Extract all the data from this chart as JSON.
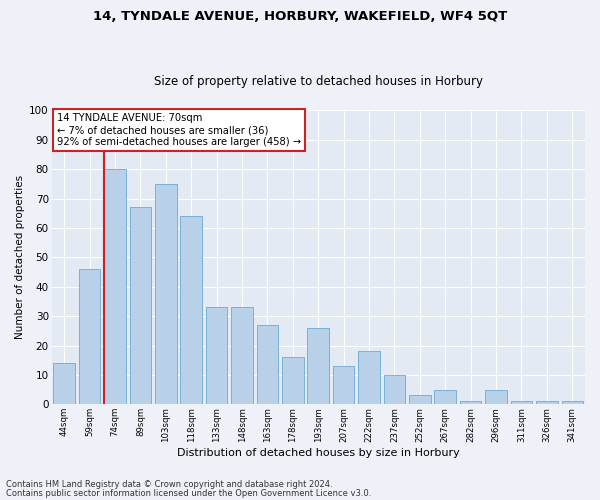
{
  "title": "14, TYNDALE AVENUE, HORBURY, WAKEFIELD, WF4 5QT",
  "subtitle": "Size of property relative to detached houses in Horbury",
  "xlabel": "Distribution of detached houses by size in Horbury",
  "ylabel": "Number of detached properties",
  "categories": [
    "44sqm",
    "59sqm",
    "74sqm",
    "89sqm",
    "103sqm",
    "118sqm",
    "133sqm",
    "148sqm",
    "163sqm",
    "178sqm",
    "193sqm",
    "207sqm",
    "222sqm",
    "237sqm",
    "252sqm",
    "267sqm",
    "282sqm",
    "296sqm",
    "311sqm",
    "326sqm",
    "341sqm"
  ],
  "values": [
    14,
    46,
    80,
    67,
    75,
    64,
    33,
    33,
    27,
    16,
    26,
    13,
    18,
    10,
    3,
    5,
    1,
    5,
    1,
    1,
    1
  ],
  "bar_color": "#b8d0e8",
  "bar_edgecolor": "#6aaad4",
  "highlight_index": 2,
  "highlight_color": "#cc2222",
  "annotation_title": "14 TYNDALE AVENUE: 70sqm",
  "annotation_line1": "← 7% of detached houses are smaller (36)",
  "annotation_line2": "92% of semi-detached houses are larger (458) →",
  "annotation_box_facecolor": "#ffffff",
  "annotation_box_edgecolor": "#cc2222",
  "ylim": [
    0,
    100
  ],
  "yticks": [
    0,
    10,
    20,
    30,
    40,
    50,
    60,
    70,
    80,
    90,
    100
  ],
  "footnote1": "Contains HM Land Registry data © Crown copyright and database right 2024.",
  "footnote2": "Contains public sector information licensed under the Open Government Licence v3.0.",
  "bg_color": "#eef2f8",
  "plot_bg_color": "#e4eaf4"
}
